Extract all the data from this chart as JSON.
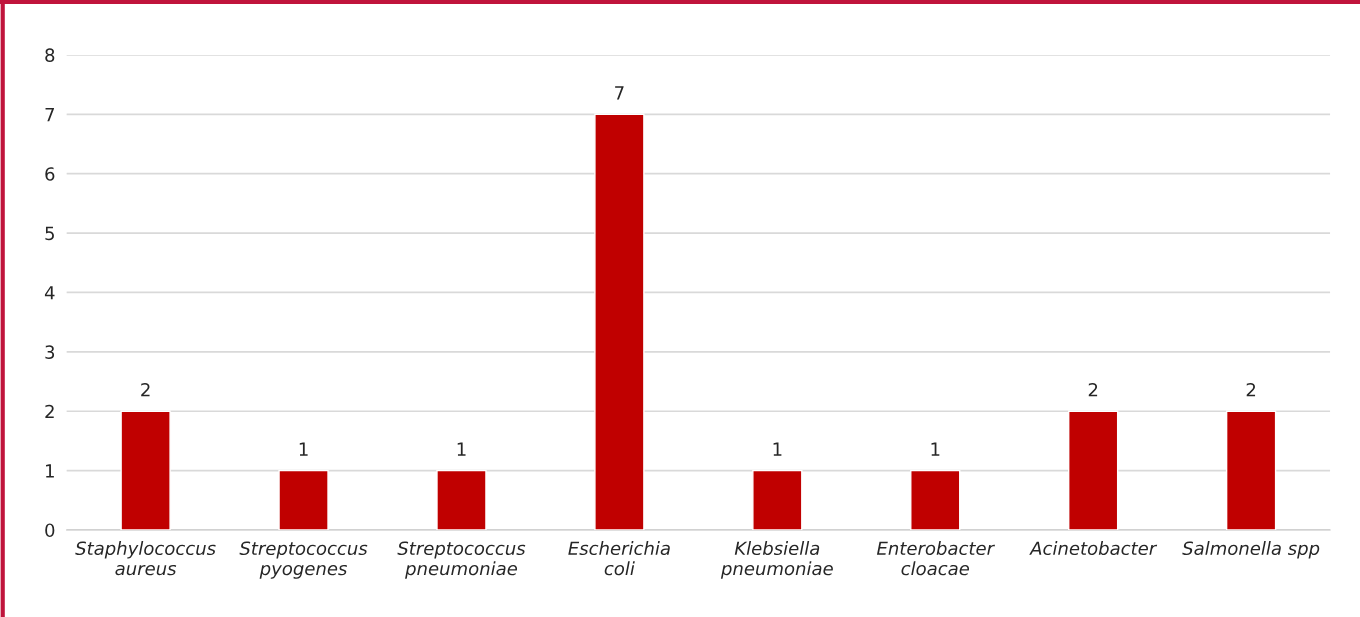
{
  "chart_data": {
    "type": "bar",
    "categories": [
      "Staphylococcus\naureus",
      "Streptococcus\npyogenes",
      "Streptococcus\npneumoniae",
      "Escherichia\ncoli",
      "Klebsiella\npneumoniae",
      "Enterobacter\ncloacae",
      "Acinetobacter",
      "Salmonella spp"
    ],
    "values": [
      2,
      1,
      1,
      7,
      1,
      1,
      2,
      2
    ],
    "color": "#c00000",
    "ylim": [
      0,
      8
    ],
    "yticks": [
      0,
      1,
      2,
      3,
      4,
      5,
      6,
      7,
      8
    ],
    "grid": "y",
    "data_labels": true
  }
}
